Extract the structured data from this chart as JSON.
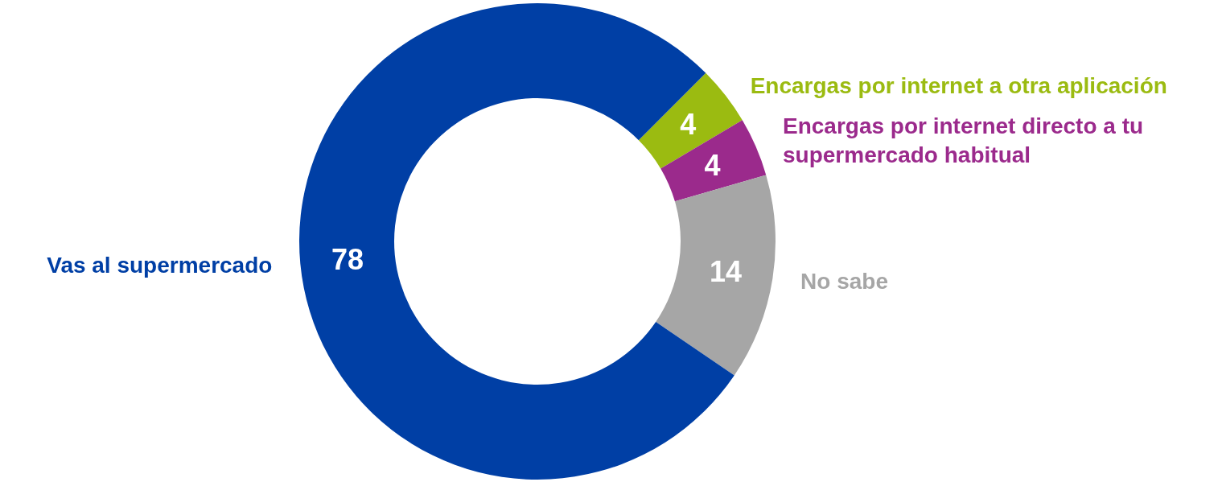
{
  "chart_data": {
    "type": "donut",
    "categories": [
      "Encargas por internet a otra aplicación",
      "Encargas por internet directo a tu supermercado habitual",
      "No sabe",
      "Vas al supermercado"
    ],
    "values": [
      4,
      4,
      14,
      78
    ],
    "colors": [
      "#9bbb11",
      "#9b2a8c",
      "#a6a6a6",
      "#003fa5"
    ],
    "data_labels": true
  }
}
